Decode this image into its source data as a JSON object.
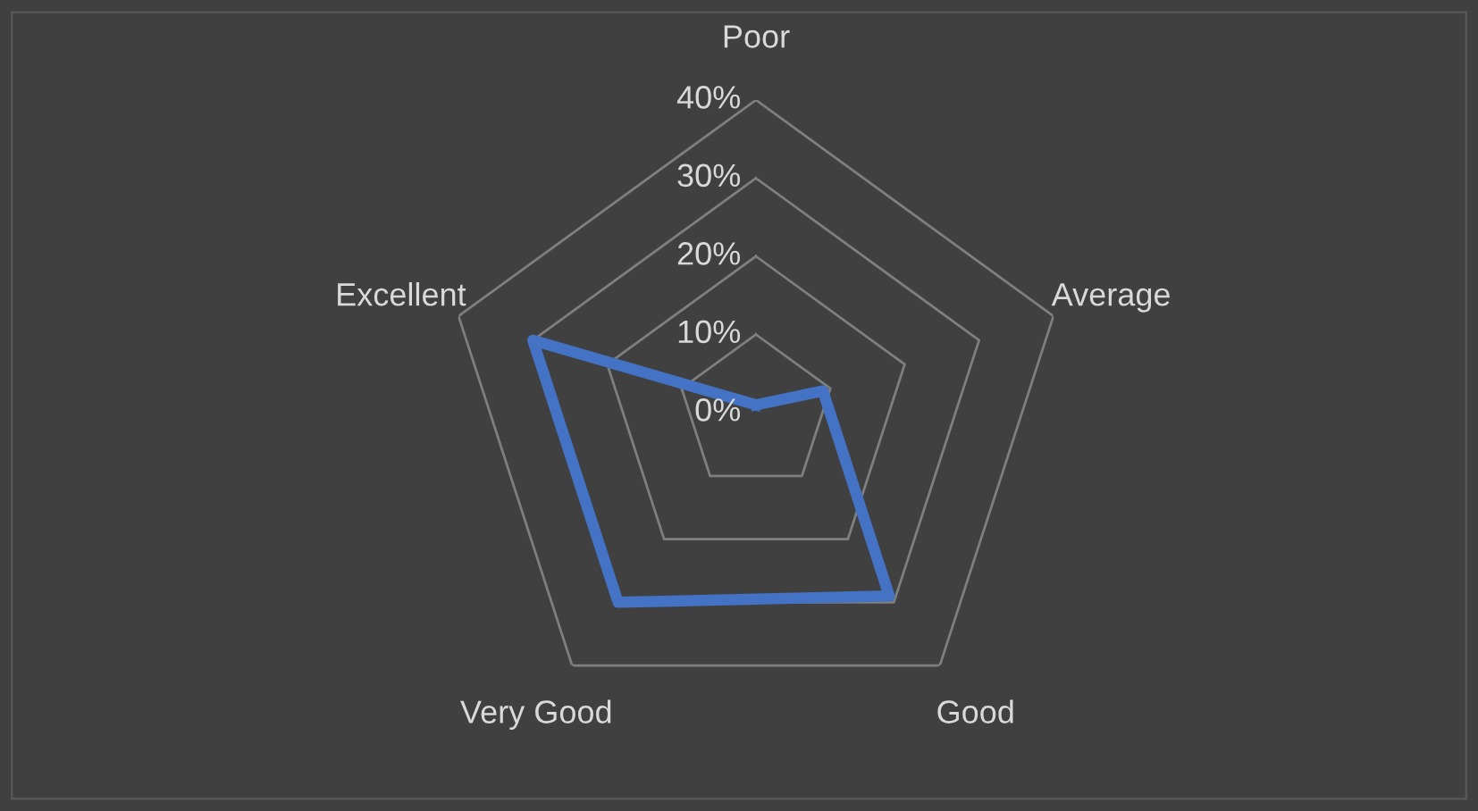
{
  "chart_data": {
    "type": "radar",
    "categories": [
      "Poor",
      "Average",
      "Good",
      "Very Good",
      "Excellent"
    ],
    "series": [
      {
        "color": "#4472c4",
        "values": [
          1,
          9,
          29,
          30,
          30
        ]
      }
    ],
    "ylim": [
      0,
      40
    ],
    "yticks": [
      {
        "value": 0,
        "label": "0%"
      },
      {
        "value": 10,
        "label": "10%"
      },
      {
        "value": 20,
        "label": "20%"
      },
      {
        "value": 30,
        "label": "30%"
      },
      {
        "value": 40,
        "label": "40%"
      }
    ],
    "grid": true,
    "marker": "none",
    "line_style": "solid"
  }
}
